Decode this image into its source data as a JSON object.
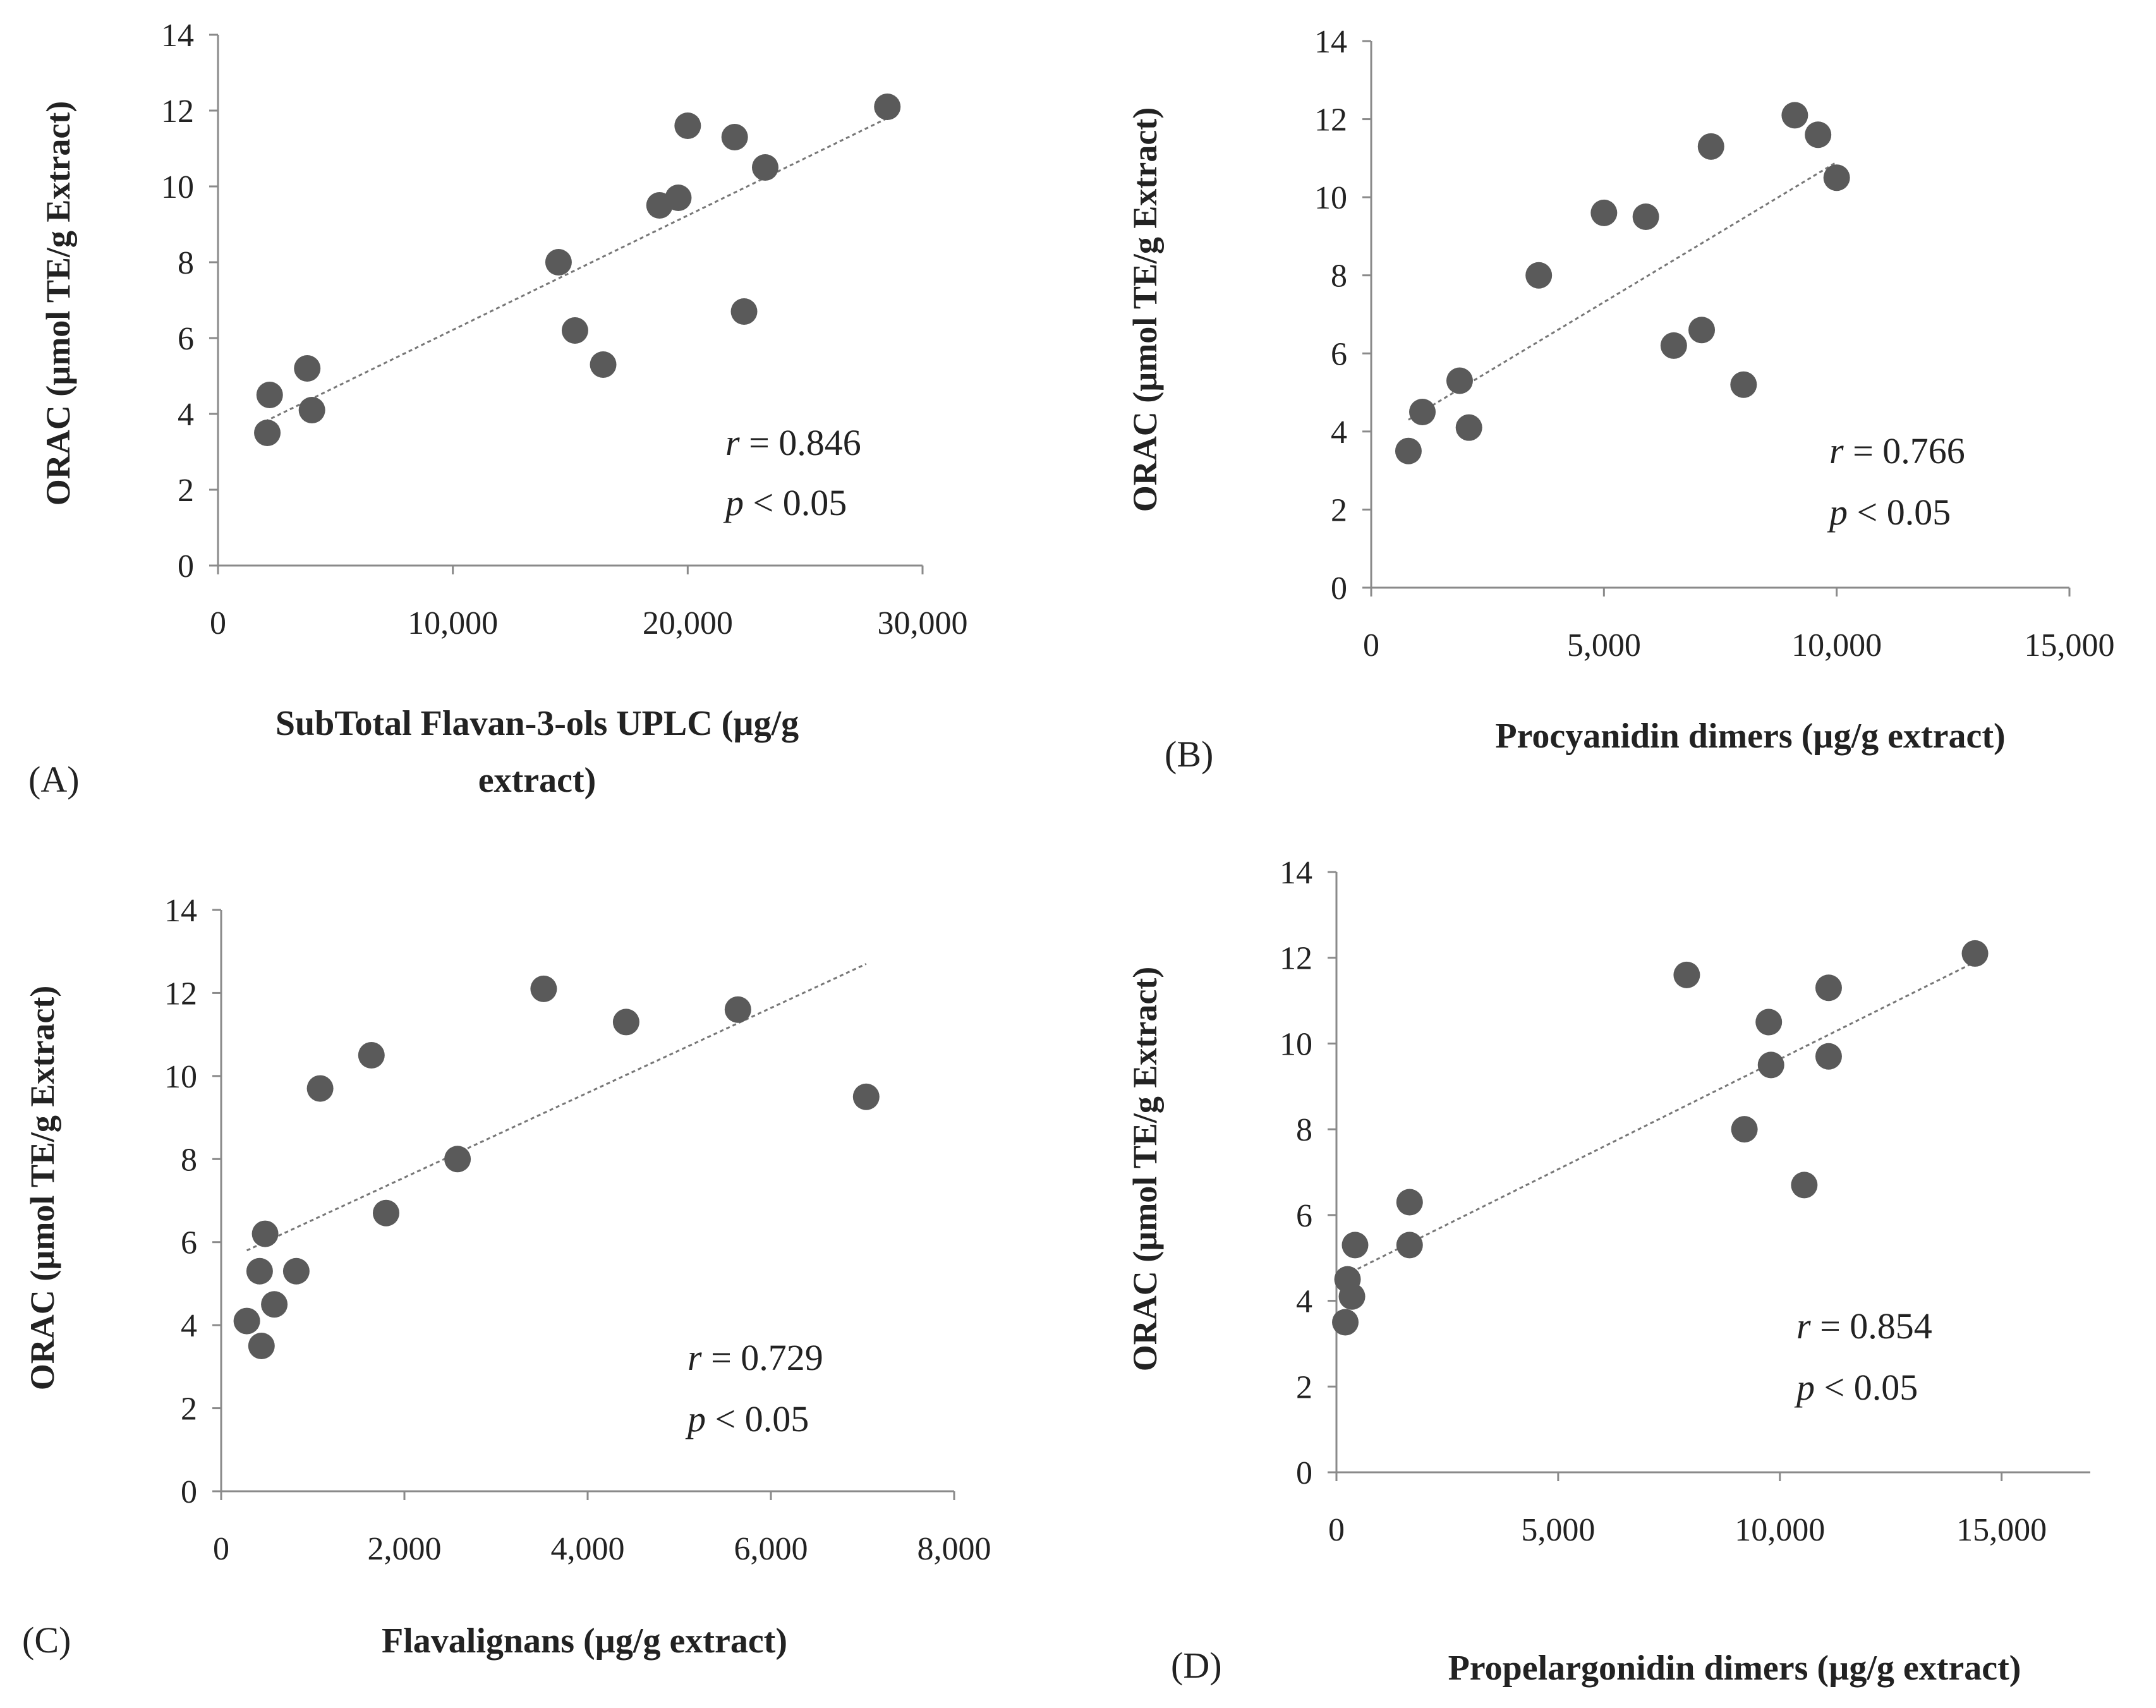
{
  "colors": {
    "point": "#5a5a5a",
    "axis": "#8a8a8a",
    "trend": "#777777",
    "text": "#222222"
  },
  "chart_data": [
    {
      "type": "scatter",
      "panel": "(A)",
      "xlabel_lines": [
        "SubTotal Flavan-3-ols UPLC (µg/g",
        "extract)"
      ],
      "ylabel": "ORAC (µmol TE/g Extract)",
      "xlim": [
        0,
        30000
      ],
      "ylim": [
        0,
        14
      ],
      "xticks": [
        0,
        10000,
        20000,
        30000
      ],
      "xtick_labels": [
        "0",
        "10,000",
        "20,000",
        "30,000"
      ],
      "yticks": [
        0,
        2,
        4,
        6,
        8,
        10,
        12,
        14
      ],
      "ytick_labels": [
        "0",
        "2",
        "4",
        "6",
        "8",
        "10",
        "12",
        "14"
      ],
      "x": [
        2100,
        2200,
        3800,
        4000,
        14500,
        15200,
        16400,
        18800,
        19600,
        20000,
        22000,
        22400,
        23300,
        28500
      ],
      "y": [
        3.5,
        4.5,
        5.2,
        4.1,
        8.0,
        6.2,
        5.3,
        9.5,
        9.7,
        11.6,
        11.3,
        6.7,
        10.5,
        12.1
      ],
      "trendline": {
        "x": [
          2000,
          28500
        ],
        "y": [
          3.8,
          11.8
        ]
      },
      "stat_r_symbol": "r",
      "stat_r_value": " = 0.846",
      "stat_p_symbol": "p",
      "stat_p_value": " < 0.05"
    },
    {
      "type": "scatter",
      "panel": "(B)",
      "xlabel_lines": [
        "Procyanidin dimers (µg/g extract)"
      ],
      "ylabel": "ORAC (µmol TE/g Extract)",
      "xlim": [
        0,
        15000
      ],
      "ylim": [
        0,
        14
      ],
      "xticks": [
        0,
        5000,
        10000,
        15000
      ],
      "xtick_labels": [
        "0",
        "5,000",
        "10,000",
        "15,000"
      ],
      "yticks": [
        0,
        2,
        4,
        6,
        8,
        10,
        12,
        14
      ],
      "ytick_labels": [
        "0",
        "2",
        "4",
        "6",
        "8",
        "10",
        "12",
        "14"
      ],
      "x": [
        800,
        1100,
        1900,
        2100,
        3600,
        5000,
        5900,
        6500,
        7100,
        7300,
        8000,
        9100,
        9600,
        10000
      ],
      "y": [
        3.5,
        4.5,
        5.3,
        4.1,
        8.0,
        9.6,
        9.5,
        6.2,
        6.6,
        11.3,
        5.2,
        12.1,
        11.6,
        10.5
      ],
      "trendline": {
        "x": [
          800,
          10000
        ],
        "y": [
          4.3,
          10.9
        ]
      },
      "stat_r_symbol": "r",
      "stat_r_value": " = 0.766",
      "stat_p_symbol": "p",
      "stat_p_value": " < 0.05"
    },
    {
      "type": "scatter",
      "panel": "(C)",
      "xlabel_lines": [
        "Flavalignans (µg/g extract)"
      ],
      "ylabel": "ORAC (µmol TE/g Extract)",
      "xlim": [
        0,
        8000
      ],
      "ylim": [
        0,
        14
      ],
      "xticks": [
        0,
        2000,
        4000,
        6000,
        8000
      ],
      "xtick_labels": [
        "0",
        "2,000",
        "4,000",
        "6,000",
        "8,000"
      ],
      "yticks": [
        0,
        2,
        4,
        6,
        8,
        10,
        12,
        14
      ],
      "ytick_labels": [
        "0",
        "2",
        "4",
        "6",
        "8",
        "10",
        "12",
        "14"
      ],
      "x": [
        280,
        420,
        440,
        480,
        580,
        820,
        1080,
        1640,
        1800,
        2580,
        3520,
        4420,
        5640,
        7040
      ],
      "y": [
        4.1,
        5.3,
        3.5,
        6.2,
        4.5,
        5.3,
        9.7,
        10.5,
        6.7,
        8.0,
        12.1,
        11.3,
        11.6,
        9.5
      ],
      "trendline": {
        "x": [
          280,
          7040
        ],
        "y": [
          5.8,
          12.7
        ]
      },
      "stat_r_symbol": "r",
      "stat_r_value": " = 0.729",
      "stat_p_symbol": "p",
      "stat_p_value": " < 0.05"
    },
    {
      "type": "scatter",
      "panel": "(D)",
      "xlabel_lines": [
        "Propelargonidin dimers (µg/g extract)"
      ],
      "ylabel": "ORAC (µmol TE/g Extract)",
      "xlim": [
        0,
        17000
      ],
      "ylim": [
        0,
        14
      ],
      "xticks": [
        0,
        5000,
        10000,
        15000
      ],
      "xtick_labels": [
        "0",
        "5,000",
        "10,000",
        "15,000"
      ],
      "yticks": [
        0,
        2,
        4,
        6,
        8,
        10,
        12,
        14
      ],
      "ytick_labels": [
        "0",
        "2",
        "4",
        "6",
        "8",
        "10",
        "12",
        "14"
      ],
      "x": [
        200,
        250,
        350,
        420,
        1650,
        1650,
        7900,
        9200,
        9750,
        9800,
        10550,
        11100,
        11100,
        14400
      ],
      "y": [
        3.5,
        4.5,
        4.1,
        5.3,
        6.3,
        5.3,
        11.6,
        8.0,
        10.5,
        9.5,
        6.7,
        11.3,
        9.7,
        12.1
      ],
      "trendline": {
        "x": [
          200,
          14400
        ],
        "y": [
          4.6,
          11.9
        ]
      },
      "stat_r_symbol": "r",
      "stat_r_value": " = 0.854",
      "stat_p_symbol": "p",
      "stat_p_value": " < 0.05"
    }
  ]
}
